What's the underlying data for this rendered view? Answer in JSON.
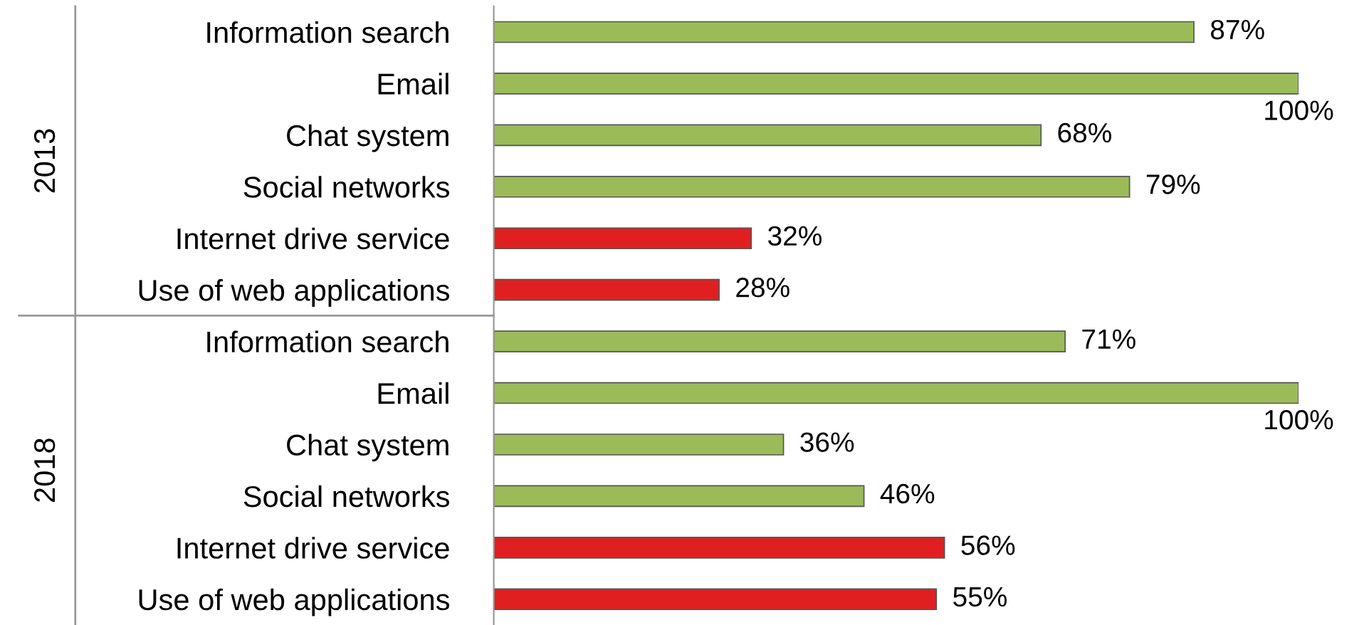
{
  "chart_data": {
    "type": "bar",
    "orientation": "horizontal",
    "categories": [
      "Information search",
      "Email",
      "Chat system",
      "Social networks",
      "Internet drive service",
      "Use of web applications",
      "Information search",
      "Email",
      "Chat system",
      "Social networks",
      "Internet drive service",
      "Use of web applications"
    ],
    "values": [
      87,
      100,
      68,
      79,
      32,
      28,
      71,
      100,
      36,
      46,
      56,
      55
    ],
    "value_labels": [
      "87%",
      "100%",
      "68%",
      "79%",
      "32%",
      "28%",
      "71%",
      "100%",
      "36%",
      "46%",
      "56%",
      "55%"
    ],
    "colors": [
      "#9bbb59",
      "#9bbb59",
      "#9bbb59",
      "#9bbb59",
      "#e02020",
      "#e02020",
      "#9bbb59",
      "#9bbb59",
      "#9bbb59",
      "#9bbb59",
      "#e02020",
      "#e02020"
    ],
    "annotations": [
      "2013",
      "2018"
    ],
    "grid": false,
    "legend": false
  }
}
